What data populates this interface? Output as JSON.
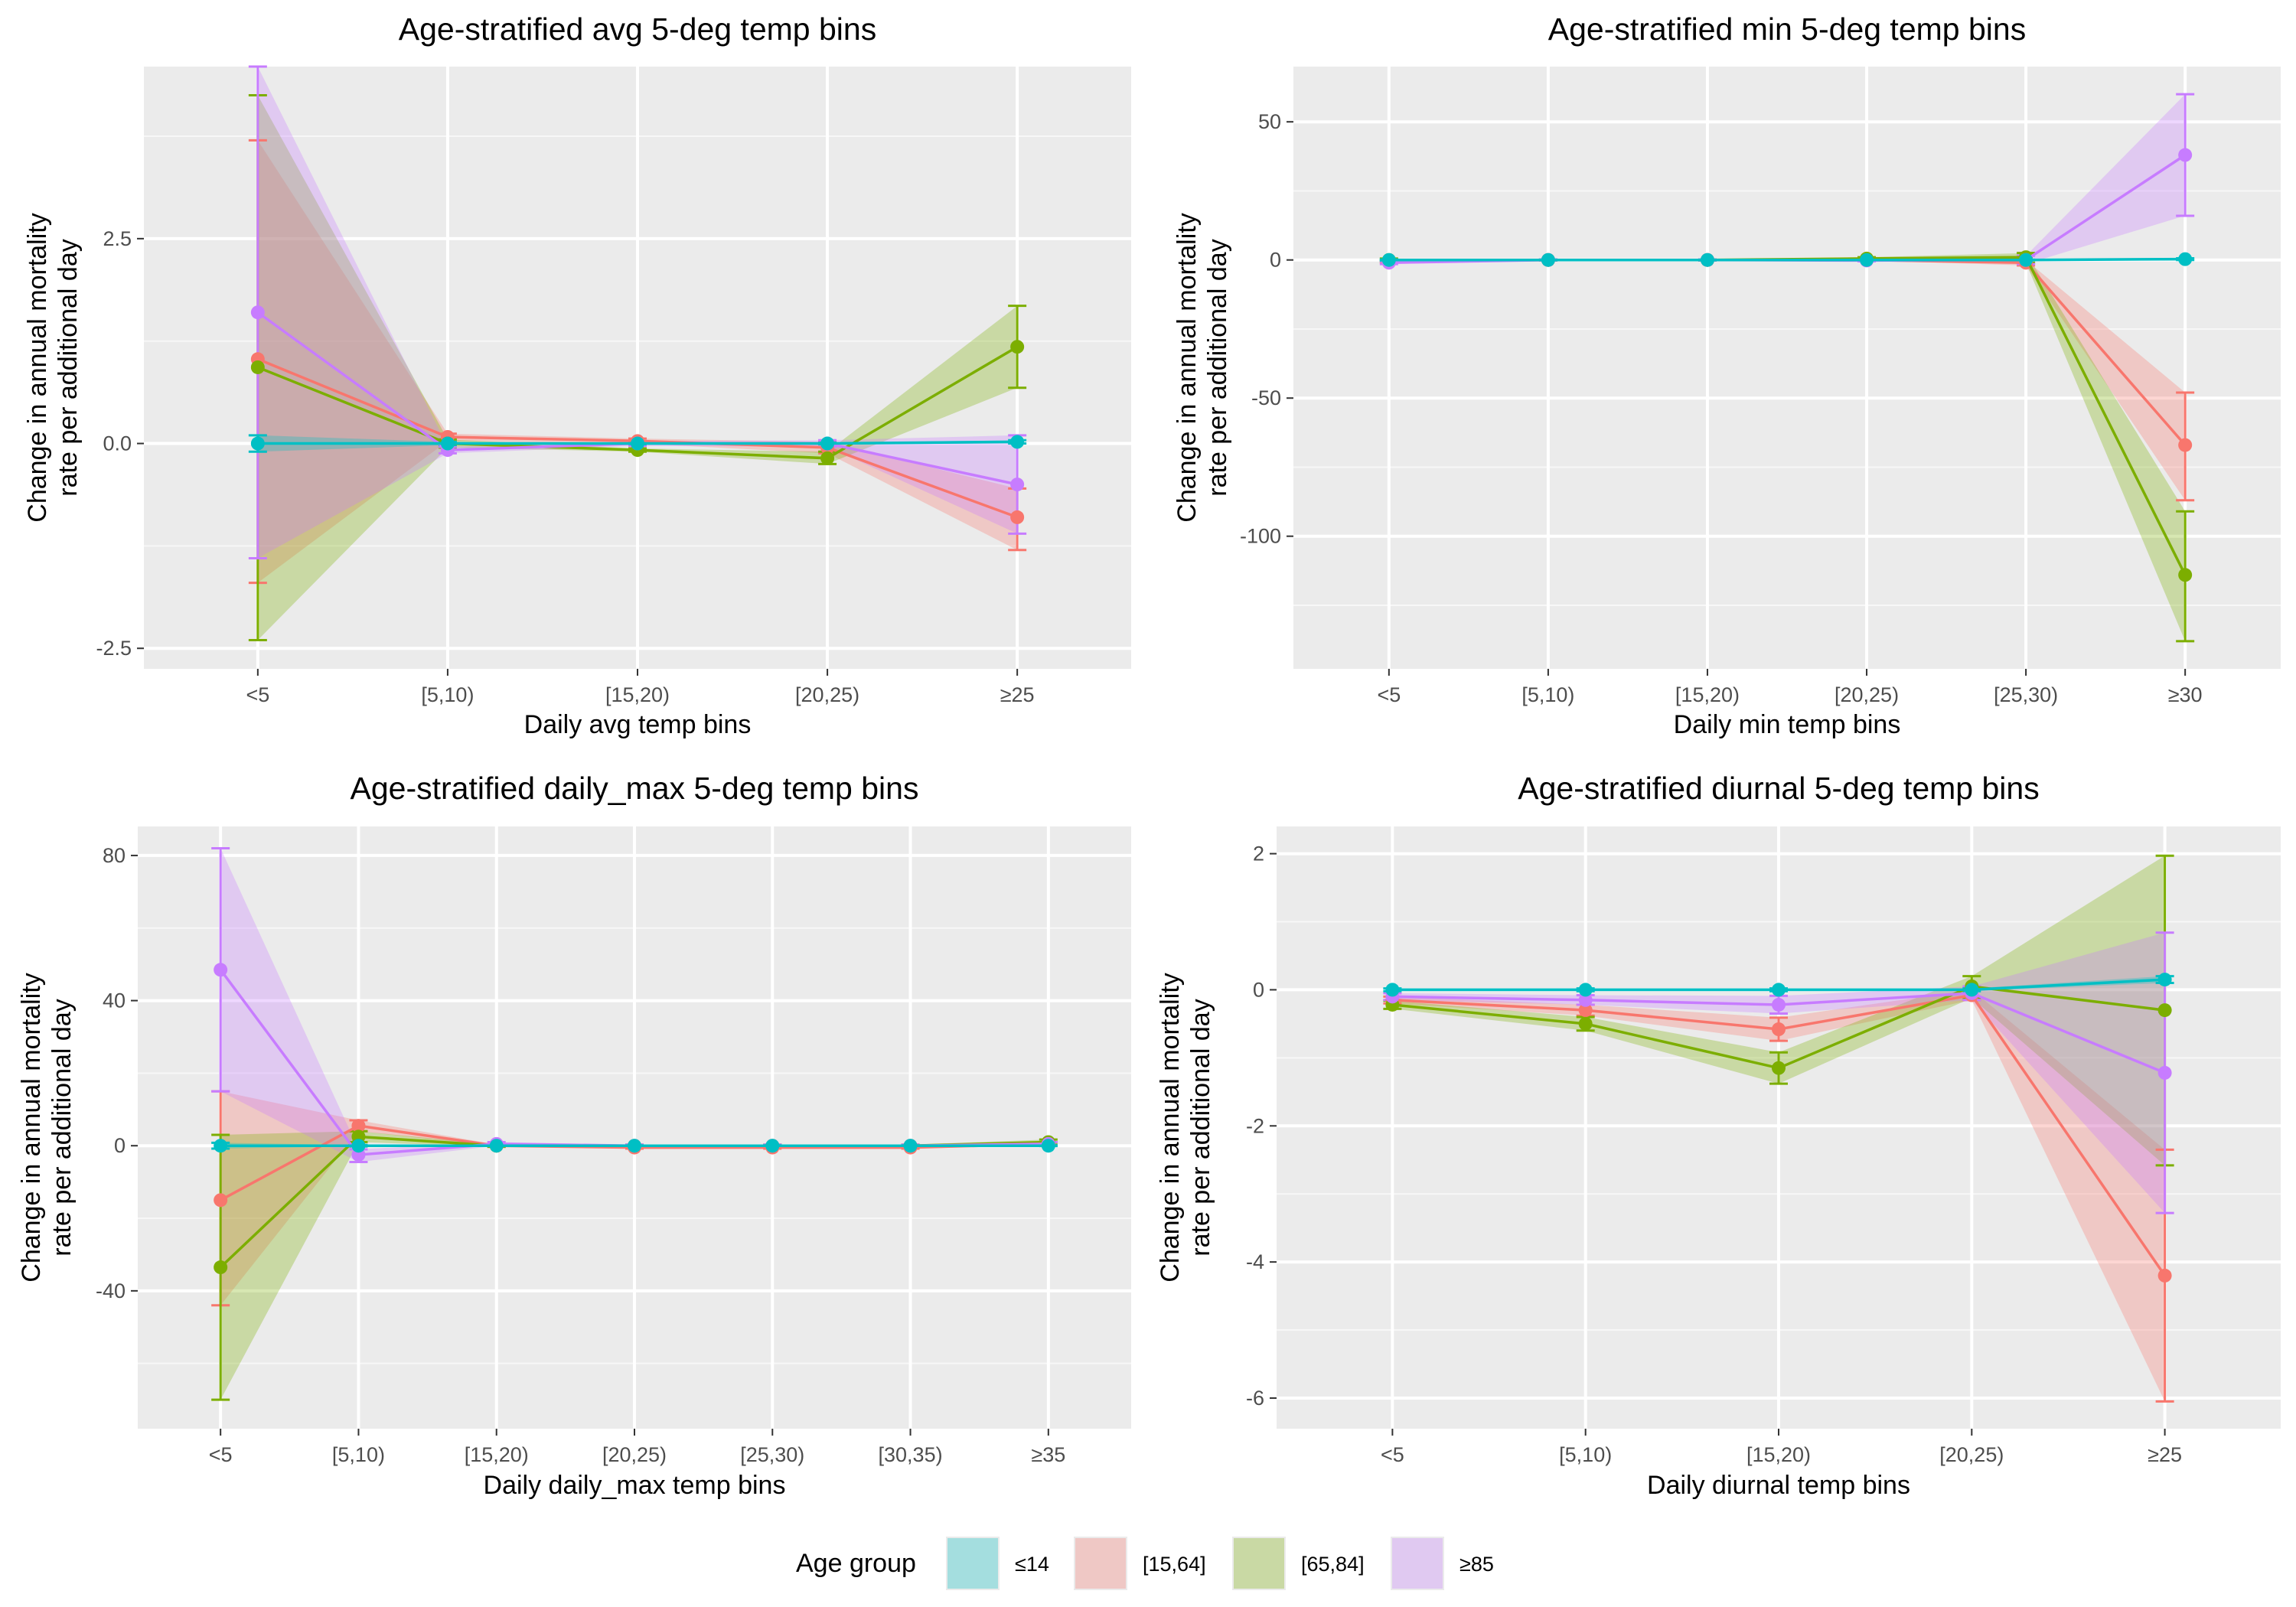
{
  "legend": {
    "title": "Age group",
    "placement": "bottom",
    "items": [
      {
        "label": "≤14",
        "color": "#00BFC4"
      },
      {
        "label": "[15,64]",
        "color": "#F8766D"
      },
      {
        "label": "[65,84]",
        "color": "#7CAE00"
      },
      {
        "label": "≥85",
        "color": "#C77CFF"
      }
    ]
  },
  "chart_data": [
    {
      "type": "line",
      "title": "Age-stratified avg 5-deg temp bins",
      "xlabel": "Daily avg temp bins",
      "ylabel_line1": "Change in annual mortality",
      "ylabel_line2": "rate per additional day",
      "categories": [
        "<5",
        "[5,10)",
        "[15,20)",
        "[20,25)",
        "≥25"
      ],
      "ylim": [
        -2.75,
        4.6
      ],
      "yticks": [
        -2.5,
        0,
        2.5
      ],
      "ytick_labels": [
        "-2.5",
        "0.0",
        "2.5"
      ],
      "grid": true,
      "series": [
        {
          "name": "[15,64]",
          "values": [
            1.03,
            0.08,
            0.03,
            -0.05,
            -0.9
          ],
          "lower": [
            -1.7,
            0.03,
            0.0,
            -0.12,
            -1.3
          ],
          "upper": [
            3.7,
            0.12,
            0.06,
            0.02,
            -0.55
          ]
        },
        {
          "name": "[65,84]",
          "values": [
            0.93,
            0.0,
            -0.08,
            -0.18,
            1.18
          ],
          "lower": [
            -2.4,
            -0.05,
            -0.1,
            -0.25,
            0.68
          ],
          "upper": [
            4.25,
            0.05,
            -0.06,
            -0.1,
            1.68
          ]
        },
        {
          "name": "≥85",
          "values": [
            1.6,
            -0.08,
            0.0,
            0.0,
            -0.5
          ],
          "lower": [
            -1.4,
            -0.12,
            -0.03,
            -0.04,
            -1.1
          ],
          "upper": [
            4.6,
            -0.04,
            0.03,
            0.04,
            0.1
          ]
        },
        {
          "name": "≤14",
          "values": [
            0.0,
            0.0,
            0.0,
            0.0,
            0.02
          ],
          "lower": [
            -0.1,
            -0.02,
            -0.01,
            -0.01,
            0.0
          ],
          "upper": [
            0.1,
            0.02,
            0.01,
            0.01,
            0.04
          ]
        }
      ]
    },
    {
      "type": "line",
      "title": "Age-stratified min 5-deg temp bins",
      "xlabel": "Daily min temp bins",
      "ylabel_line1": "Change in annual mortality",
      "ylabel_line2": "rate per additional day",
      "categories": [
        "<5",
        "[5,10)",
        "[15,20)",
        "[20,25)",
        "[25,30)",
        "≥30"
      ],
      "ylim": [
        -148,
        70
      ],
      "yticks": [
        -100,
        -50,
        0,
        50
      ],
      "ytick_labels": [
        "-100",
        "-50",
        "0",
        "50"
      ],
      "grid": true,
      "series": [
        {
          "name": "[15,64]",
          "values": [
            -0.5,
            0.0,
            0.0,
            0.0,
            -1.0,
            -67.0
          ],
          "lower": [
            -1.0,
            -0.2,
            -0.2,
            -0.2,
            -2.0,
            -87.0
          ],
          "upper": [
            0.0,
            0.2,
            0.2,
            0.2,
            0.0,
            -48.0
          ]
        },
        {
          "name": "[65,84]",
          "values": [
            0.0,
            0.0,
            0.0,
            0.5,
            1.0,
            -114.0
          ],
          "lower": [
            -0.5,
            -0.2,
            -0.2,
            0.0,
            -1.0,
            -138.0
          ],
          "upper": [
            0.5,
            0.2,
            0.2,
            1.0,
            2.5,
            -91.0
          ]
        },
        {
          "name": "≥85",
          "values": [
            -1.0,
            0.0,
            0.0,
            -0.2,
            0.0,
            38.0
          ],
          "lower": [
            -1.5,
            -0.2,
            -0.2,
            -0.5,
            -1.5,
            16.0
          ],
          "upper": [
            -0.5,
            0.2,
            0.2,
            0.2,
            1.5,
            60.0
          ]
        },
        {
          "name": "≤14",
          "values": [
            0.0,
            0.0,
            0.0,
            0.0,
            0.0,
            0.3
          ],
          "lower": [
            -0.2,
            -0.1,
            -0.1,
            -0.1,
            -0.1,
            0.0
          ],
          "upper": [
            0.2,
            0.1,
            0.1,
            0.1,
            0.1,
            0.6
          ]
        }
      ]
    },
    {
      "type": "line",
      "title": "Age-stratified daily_max 5-deg temp bins",
      "xlabel": "Daily daily_max temp bins",
      "ylabel_line1": "Change in annual mortality",
      "ylabel_line2": "rate per additional day",
      "categories": [
        "<5",
        "[5,10)",
        "[15,20)",
        "[20,25)",
        "[25,30)",
        "[30,35)",
        "≥35"
      ],
      "ylim": [
        -78,
        88
      ],
      "yticks": [
        -40,
        0,
        40,
        80
      ],
      "ytick_labels": [
        "-40",
        "0",
        "40",
        "80"
      ],
      "grid": true,
      "series": [
        {
          "name": "[15,64]",
          "values": [
            -15.0,
            5.5,
            0.0,
            -0.5,
            -0.5,
            -0.5,
            0.5
          ],
          "lower": [
            -44.0,
            4.0,
            -0.3,
            -0.8,
            -0.8,
            -0.8,
            0.0
          ],
          "upper": [
            15.0,
            7.0,
            0.3,
            -0.2,
            -0.2,
            -0.2,
            1.0
          ]
        },
        {
          "name": "[65,84]",
          "values": [
            -33.5,
            2.5,
            0.0,
            0.0,
            0.0,
            0.0,
            1.0
          ],
          "lower": [
            -70.0,
            1.0,
            -0.3,
            -0.3,
            -0.3,
            -0.3,
            0.3
          ],
          "upper": [
            3.0,
            4.0,
            0.3,
            0.3,
            0.3,
            0.3,
            1.7
          ]
        },
        {
          "name": "≥85",
          "values": [
            48.5,
            -2.5,
            0.5,
            0.0,
            0.0,
            0.0,
            0.5
          ],
          "lower": [
            15.0,
            -4.5,
            0.0,
            -0.3,
            -0.3,
            -0.3,
            0.0
          ],
          "upper": [
            82.0,
            -1.0,
            1.0,
            0.3,
            0.3,
            0.3,
            1.0
          ]
        },
        {
          "name": "≤14",
          "values": [
            0.0,
            0.0,
            0.0,
            0.0,
            0.0,
            0.0,
            0.0
          ],
          "lower": [
            -0.8,
            -0.2,
            -0.1,
            -0.1,
            -0.1,
            -0.1,
            -0.1
          ],
          "upper": [
            0.8,
            0.2,
            0.1,
            0.1,
            0.1,
            0.1,
            0.1
          ]
        }
      ]
    },
    {
      "type": "line",
      "title": "Age-stratified diurnal 5-deg temp bins",
      "xlabel": "Daily diurnal temp bins",
      "ylabel_line1": "Change in annual mortality",
      "ylabel_line2": "rate per additional day",
      "categories": [
        "<5",
        "[5,10)",
        "[15,20)",
        "[20,25)",
        "≥25"
      ],
      "ylim": [
        -6.45,
        2.4
      ],
      "yticks": [
        -6,
        -4,
        -2,
        0,
        2
      ],
      "ytick_labels": [
        "-6",
        "-4",
        "-2",
        "0",
        "2"
      ],
      "grid": true,
      "series": [
        {
          "name": "[15,64]",
          "values": [
            -0.15,
            -0.3,
            -0.58,
            -0.08,
            -4.2
          ],
          "lower": [
            -0.2,
            -0.38,
            -0.75,
            -0.15,
            -6.05
          ],
          "upper": [
            -0.1,
            -0.22,
            -0.41,
            0.0,
            -2.35
          ]
        },
        {
          "name": "[65,84]",
          "values": [
            -0.22,
            -0.5,
            -1.15,
            0.05,
            -0.3
          ],
          "lower": [
            -0.28,
            -0.6,
            -1.38,
            -0.12,
            -2.58
          ],
          "upper": [
            -0.16,
            -0.4,
            -0.92,
            0.2,
            1.97
          ]
        },
        {
          "name": "≥85",
          "values": [
            -0.1,
            -0.15,
            -0.22,
            -0.05,
            -1.22
          ],
          "lower": [
            -0.15,
            -0.22,
            -0.35,
            -0.15,
            -3.28
          ],
          "upper": [
            -0.05,
            -0.08,
            -0.09,
            0.05,
            0.84
          ]
        },
        {
          "name": "≤14",
          "values": [
            0.0,
            0.0,
            0.0,
            0.0,
            0.15
          ],
          "lower": [
            -0.02,
            -0.02,
            -0.02,
            -0.02,
            0.1
          ],
          "upper": [
            0.02,
            0.02,
            0.02,
            0.02,
            0.2
          ]
        }
      ]
    }
  ]
}
